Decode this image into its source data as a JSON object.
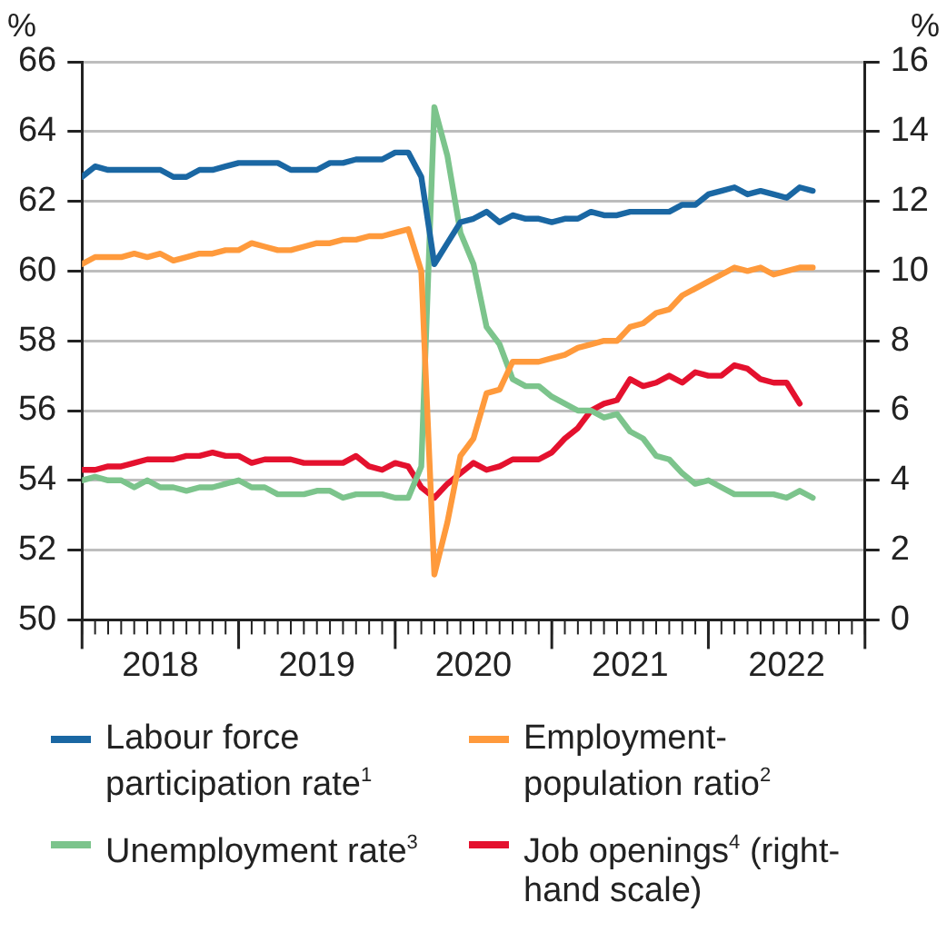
{
  "chart_data": {
    "type": "line",
    "ylabel": "%",
    "y2label": "%",
    "x": [
      "2018-01",
      "2018-02",
      "2018-03",
      "2018-04",
      "2018-05",
      "2018-06",
      "2018-07",
      "2018-08",
      "2018-09",
      "2018-10",
      "2018-11",
      "2018-12",
      "2019-01",
      "2019-02",
      "2019-03",
      "2019-04",
      "2019-05",
      "2019-06",
      "2019-07",
      "2019-08",
      "2019-09",
      "2019-10",
      "2019-11",
      "2019-12",
      "2020-01",
      "2020-02",
      "2020-03",
      "2020-04",
      "2020-05",
      "2020-06",
      "2020-07",
      "2020-08",
      "2020-09",
      "2020-10",
      "2020-11",
      "2020-12",
      "2021-01",
      "2021-02",
      "2021-03",
      "2021-04",
      "2021-05",
      "2021-06",
      "2021-07",
      "2021-08",
      "2021-09",
      "2021-10",
      "2021-11",
      "2021-12",
      "2022-01",
      "2022-02",
      "2022-03",
      "2022-04",
      "2022-05",
      "2022-06",
      "2022-07",
      "2022-08",
      "2022-09"
    ],
    "series": [
      {
        "name": "Labour force participation rate$^{1}$",
        "color": "#1a67a3",
        "axis": "y",
        "values": [
          62.7,
          63.0,
          62.9,
          62.9,
          62.9,
          62.9,
          62.9,
          62.7,
          62.7,
          62.9,
          62.9,
          63.0,
          63.1,
          63.1,
          63.1,
          63.1,
          62.9,
          62.9,
          62.9,
          63.1,
          63.1,
          63.2,
          63.2,
          63.2,
          63.4,
          63.4,
          62.7,
          60.2,
          60.8,
          61.4,
          61.5,
          61.7,
          61.4,
          61.6,
          61.5,
          61.5,
          61.4,
          61.5,
          61.5,
          61.7,
          61.6,
          61.6,
          61.7,
          61.7,
          61.7,
          61.7,
          61.9,
          61.9,
          62.2,
          62.3,
          62.4,
          62.2,
          62.3,
          62.2,
          62.1,
          62.4,
          62.3
        ]
      },
      {
        "name": "Employment-population ratio$^{2}$",
        "color": "#ff9a3c",
        "axis": "y",
        "values": [
          60.2,
          60.4,
          60.4,
          60.4,
          60.5,
          60.4,
          60.5,
          60.3,
          60.4,
          60.5,
          60.5,
          60.6,
          60.6,
          60.8,
          60.7,
          60.6,
          60.6,
          60.7,
          60.8,
          60.8,
          60.9,
          60.9,
          61.0,
          61.0,
          61.1,
          61.2,
          60.0,
          51.3,
          52.8,
          54.7,
          55.2,
          56.5,
          56.6,
          57.4,
          57.4,
          57.4,
          57.5,
          57.6,
          57.8,
          57.9,
          58.0,
          58.0,
          58.4,
          58.5,
          58.8,
          58.9,
          59.3,
          59.5,
          59.7,
          59.9,
          60.1,
          60.0,
          60.1,
          59.9,
          60.0,
          60.1,
          60.1
        ]
      },
      {
        "name": "Unemployment rate$^{3}$",
        "color": "#7cc48c",
        "axis": "y2",
        "values": [
          4.0,
          4.1,
          4.0,
          4.0,
          3.8,
          4.0,
          3.8,
          3.8,
          3.7,
          3.8,
          3.8,
          3.9,
          4.0,
          3.8,
          3.8,
          3.6,
          3.6,
          3.6,
          3.7,
          3.7,
          3.5,
          3.6,
          3.6,
          3.6,
          3.5,
          3.5,
          4.4,
          14.7,
          13.3,
          11.1,
          10.2,
          8.4,
          7.9,
          6.9,
          6.7,
          6.7,
          6.4,
          6.2,
          6.0,
          6.0,
          5.8,
          5.9,
          5.4,
          5.2,
          4.7,
          4.6,
          4.2,
          3.9,
          4.0,
          3.8,
          3.6,
          3.6,
          3.6,
          3.6,
          3.5,
          3.7,
          3.5
        ]
      },
      {
        "name": "Job openings$^{4}$ (right-hand scale)",
        "color": "#e4112e",
        "axis": "y2",
        "values": [
          4.3,
          4.3,
          4.4,
          4.4,
          4.5,
          4.6,
          4.6,
          4.6,
          4.7,
          4.7,
          4.8,
          4.7,
          4.7,
          4.5,
          4.6,
          4.6,
          4.6,
          4.5,
          4.5,
          4.5,
          4.5,
          4.7,
          4.4,
          4.3,
          4.5,
          4.4,
          3.8,
          3.5,
          3.9,
          4.2,
          4.5,
          4.3,
          4.4,
          4.6,
          4.6,
          4.6,
          4.8,
          5.2,
          5.5,
          6.0,
          6.2,
          6.3,
          6.9,
          6.7,
          6.8,
          7.0,
          6.8,
          7.1,
          7.0,
          7.0,
          7.3,
          7.2,
          6.9,
          6.8,
          6.8,
          6.2,
          null
        ]
      }
    ],
    "xlim": [
      "2018-01",
      "2023-01"
    ],
    "xticks": [
      {
        "value": "2018-01",
        "label": null
      },
      {
        "value": "2018-07",
        "label": "2018"
      },
      {
        "value": "2019-01",
        "label": null
      },
      {
        "value": "2019-07",
        "label": "2019"
      },
      {
        "value": "2020-01",
        "label": null
      },
      {
        "value": "2020-07",
        "label": "2020"
      },
      {
        "value": "2021-01",
        "label": null
      },
      {
        "value": "2021-07",
        "label": "2021"
      },
      {
        "value": "2022-01",
        "label": null
      },
      {
        "value": "2022-07",
        "label": "2022"
      },
      {
        "value": "2023-01",
        "label": null
      }
    ],
    "ylim": [
      50,
      66
    ],
    "yticks": [
      50,
      52,
      54,
      56,
      58,
      60,
      62,
      64,
      66
    ],
    "y2lim": [
      0,
      16
    ],
    "y2ticks": [
      0,
      2,
      4,
      6,
      8,
      10,
      12,
      14,
      16
    ],
    "grid": "y",
    "legend": "bottom",
    "marker": "none",
    "line_style": "solid"
  }
}
